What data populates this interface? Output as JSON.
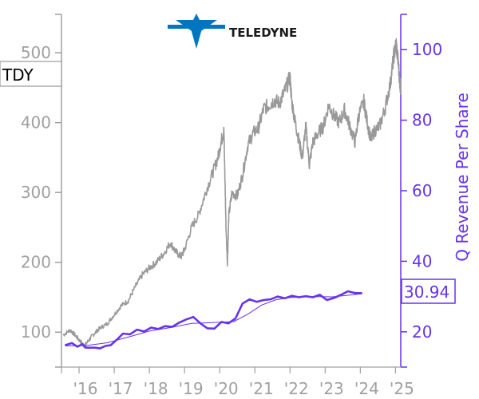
{
  "logo": {
    "text": "TELEDYNE",
    "icon": "teledyne-star-logo",
    "color": "#0076c0"
  },
  "chart_data": {
    "type": "line",
    "ticker": "TDY",
    "x_tick_labels": [
      "'16",
      "'17",
      "'18",
      "'19",
      "'20",
      "'21",
      "'22",
      "'23",
      "'24",
      "'25"
    ],
    "x_tick_years": [
      2016,
      2017,
      2018,
      2019,
      2020,
      2021,
      2022,
      2023,
      2024,
      2025
    ],
    "xlim": [
      2015.5,
      2025.15
    ],
    "left_axis": {
      "label": "",
      "ylim": [
        50,
        555
      ],
      "ticks": [
        100,
        200,
        300,
        400,
        500
      ],
      "color": "#a0a0a0"
    },
    "right_axis": {
      "label": "Q Revenue Per Share",
      "ylim": [
        10,
        110
      ],
      "ticks": [
        20,
        40,
        60,
        80,
        100
      ],
      "color": "#6633ee"
    },
    "price_series": {
      "name": "TDY",
      "color": "#999999",
      "points": [
        [
          2015.55,
          96
        ],
        [
          2015.75,
          103
        ],
        [
          2015.9,
          95
        ],
        [
          2016.05,
          86
        ],
        [
          2016.15,
          80
        ],
        [
          2016.3,
          90
        ],
        [
          2016.45,
          99
        ],
        [
          2016.6,
          106
        ],
        [
          2016.8,
          112
        ],
        [
          2017.0,
          125
        ],
        [
          2017.2,
          138
        ],
        [
          2017.4,
          145
        ],
        [
          2017.6,
          165
        ],
        [
          2017.8,
          182
        ],
        [
          2018.0,
          192
        ],
        [
          2018.2,
          200
        ],
        [
          2018.4,
          212
        ],
        [
          2018.6,
          228
        ],
        [
          2018.75,
          215
        ],
        [
          2018.9,
          208
        ],
        [
          2019.0,
          218
        ],
        [
          2019.2,
          250
        ],
        [
          2019.4,
          268
        ],
        [
          2019.6,
          300
        ],
        [
          2019.8,
          328
        ],
        [
          2019.95,
          350
        ],
        [
          2020.05,
          375
        ],
        [
          2020.12,
          388
        ],
        [
          2020.18,
          250
        ],
        [
          2020.22,
          200
        ],
        [
          2020.26,
          268
        ],
        [
          2020.35,
          300
        ],
        [
          2020.5,
          295
        ],
        [
          2020.65,
          325
        ],
        [
          2020.8,
          368
        ],
        [
          2020.95,
          385
        ],
        [
          2021.1,
          392
        ],
        [
          2021.25,
          420
        ],
        [
          2021.4,
          425
        ],
        [
          2021.55,
          432
        ],
        [
          2021.7,
          428
        ],
        [
          2021.85,
          445
        ],
        [
          2022.0,
          465
        ],
        [
          2022.05,
          430
        ],
        [
          2022.15,
          400
        ],
        [
          2022.25,
          375
        ],
        [
          2022.35,
          350
        ],
        [
          2022.45,
          395
        ],
        [
          2022.55,
          340
        ],
        [
          2022.65,
          372
        ],
        [
          2022.8,
          385
        ],
        [
          2022.95,
          395
        ],
        [
          2023.1,
          425
        ],
        [
          2023.25,
          410
        ],
        [
          2023.4,
          400
        ],
        [
          2023.55,
          418
        ],
        [
          2023.7,
          395
        ],
        [
          2023.85,
          372
        ],
        [
          2023.95,
          410
        ],
        [
          2024.1,
          430
        ],
        [
          2024.2,
          400
        ],
        [
          2024.3,
          375
        ],
        [
          2024.4,
          388
        ],
        [
          2024.55,
          395
        ],
        [
          2024.7,
          420
        ],
        [
          2024.85,
          455
        ],
        [
          2024.95,
          495
        ],
        [
          2025.02,
          513
        ],
        [
          2025.08,
          485
        ],
        [
          2025.12,
          460
        ],
        [
          2025.15,
          448
        ]
      ]
    },
    "revenue_series": {
      "name": "Q Revenue Per Share",
      "color": "#6633ee",
      "last_value_label": "30.94",
      "points": [
        [
          2015.6,
          16.2
        ],
        [
          2015.8,
          16.8
        ],
        [
          2015.95,
          15.8
        ],
        [
          2016.1,
          16.5
        ],
        [
          2016.2,
          15.5
        ],
        [
          2016.45,
          15.5
        ],
        [
          2016.6,
          15.3
        ],
        [
          2016.75,
          16.0
        ],
        [
          2016.9,
          16.2
        ],
        [
          2017.1,
          18.0
        ],
        [
          2017.25,
          19.5
        ],
        [
          2017.45,
          19.3
        ],
        [
          2017.65,
          20.6
        ],
        [
          2017.85,
          20.1
        ],
        [
          2018.05,
          21.2
        ],
        [
          2018.25,
          20.8
        ],
        [
          2018.45,
          21.6
        ],
        [
          2018.65,
          21.4
        ],
        [
          2018.85,
          22.6
        ],
        [
          2019.05,
          23.5
        ],
        [
          2019.25,
          24.2
        ],
        [
          2019.45,
          22.4
        ],
        [
          2019.65,
          21.0
        ],
        [
          2019.85,
          20.9
        ],
        [
          2020.05,
          22.8
        ],
        [
          2020.25,
          22.4
        ],
        [
          2020.45,
          23.8
        ],
        [
          2020.65,
          28.0
        ],
        [
          2020.85,
          29.2
        ],
        [
          2021.05,
          28.5
        ],
        [
          2021.25,
          29.0
        ],
        [
          2021.45,
          29.2
        ],
        [
          2021.65,
          30.0
        ],
        [
          2021.85,
          29.5
        ],
        [
          2022.05,
          30.2
        ],
        [
          2022.25,
          29.8
        ],
        [
          2022.45,
          30.1
        ],
        [
          2022.65,
          29.8
        ],
        [
          2022.85,
          30.5
        ],
        [
          2023.05,
          29.0
        ],
        [
          2023.25,
          29.6
        ],
        [
          2023.45,
          30.5
        ],
        [
          2023.65,
          31.5
        ],
        [
          2023.85,
          31.0
        ],
        [
          2024.05,
          30.94
        ]
      ]
    },
    "trend_series": {
      "name": "",
      "color": "#6633ee",
      "points": [
        [
          2015.6,
          16.0
        ],
        [
          2016.2,
          16.1
        ],
        [
          2016.8,
          16.9
        ],
        [
          2017.4,
          18.5
        ],
        [
          2018.0,
          20.2
        ],
        [
          2018.6,
          21.2
        ],
        [
          2019.2,
          22.4
        ],
        [
          2019.8,
          22.6
        ],
        [
          2020.4,
          22.9
        ],
        [
          2020.8,
          25.0
        ],
        [
          2021.2,
          27.6
        ],
        [
          2021.6,
          29.1
        ],
        [
          2022.0,
          29.7
        ],
        [
          2022.6,
          30.0
        ],
        [
          2023.2,
          29.9
        ],
        [
          2023.6,
          30.3
        ],
        [
          2024.05,
          30.8
        ]
      ]
    }
  }
}
